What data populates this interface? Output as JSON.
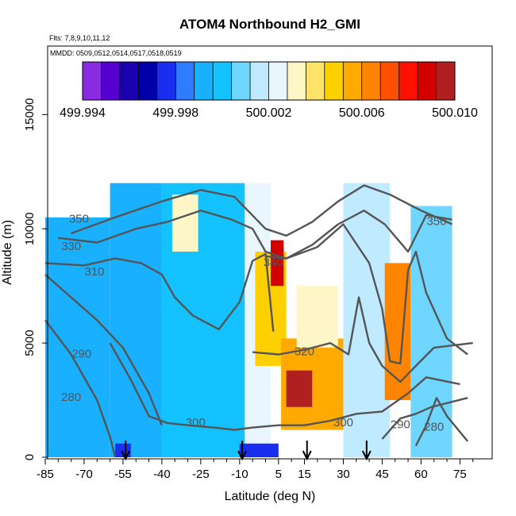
{
  "chart_data": {
    "type": "heatmap",
    "title": "ATOM4 Northbound H2_GMI",
    "flights_label": "Flts: 7,8,9,10,11,12",
    "dates_label": "MMDD: 0509,0512,0514,0517,0518,0519",
    "xlabel": "Latitude (deg N)",
    "ylabel": "Altitude (m)",
    "xlim": [
      -85,
      85
    ],
    "ylim": [
      0,
      18000
    ],
    "x_ticks": [
      -85,
      -70,
      -55,
      -40,
      -25,
      -10,
      5,
      15,
      30,
      45,
      60,
      75
    ],
    "x_tick_labels": [
      "-85",
      "-70",
      "-55",
      "-40",
      "-25",
      "-10",
      "5",
      "15",
      "30",
      "45",
      "60",
      "75"
    ],
    "y_ticks": [
      0,
      5000,
      10000,
      15000
    ],
    "y_tick_labels": [
      "0",
      "5000",
      "10000",
      "15000"
    ],
    "colorbar": {
      "range": [
        499.994,
        500.01
      ],
      "tick_values": [
        499.994,
        499.998,
        500.002,
        500.006,
        500.01
      ],
      "tick_labels": [
        "499.994",
        "499.998",
        "500.002",
        "500.006",
        "500.010"
      ],
      "colors": [
        "#8a2be2",
        "#5500d0",
        "#1a00b0",
        "#0000a8",
        "#1a2ef0",
        "#2f7cff",
        "#19b0ff",
        "#13c2ff",
        "#6fd6ff",
        "#bfeaff",
        "#eaf6ff",
        "#fff6c8",
        "#ffe36a",
        "#ffd000",
        "#ffaa00",
        "#ff8400",
        "#ff5000",
        "#ff1000",
        "#d30000",
        "#b02020"
      ]
    },
    "field_regions": [
      {
        "lat": [
          -85,
          -60
        ],
        "alt": [
          0,
          10500
        ],
        "value": 499.9996
      },
      {
        "lat": [
          -60,
          -40
        ],
        "alt": [
          0,
          12000
        ],
        "value": 499.9996
      },
      {
        "lat": [
          -40,
          -8
        ],
        "alt": [
          0,
          12000
        ],
        "value": 500.0
      },
      {
        "lat": [
          -36,
          -26
        ],
        "alt": [
          9000,
          11500
        ],
        "value": 500.0035
      },
      {
        "lat": [
          -8,
          2
        ],
        "alt": [
          0,
          12000
        ],
        "value": 500.002
      },
      {
        "lat": [
          -4,
          8
        ],
        "alt": [
          4000,
          9000
        ],
        "value": 500.005
      },
      {
        "lat": [
          2,
          7
        ],
        "alt": [
          7500,
          9500
        ],
        "value": 500.009
      },
      {
        "lat": [
          6,
          32
        ],
        "alt": [
          1200,
          5200
        ],
        "value": 500.006
      },
      {
        "lat": [
          8,
          18
        ],
        "alt": [
          2200,
          3800
        ],
        "value": 500.0095
      },
      {
        "lat": [
          12,
          28
        ],
        "alt": [
          4800,
          7500
        ],
        "value": 500.0035
      },
      {
        "lat": [
          30,
          48
        ],
        "alt": [
          0,
          12000
        ],
        "value": 500.0015
      },
      {
        "lat": [
          46,
          56
        ],
        "alt": [
          2500,
          8500
        ],
        "value": 500.0065
      },
      {
        "lat": [
          56,
          72
        ],
        "alt": [
          0,
          11000
        ],
        "value": 500.0005
      },
      {
        "lat": [
          -58,
          -52
        ],
        "alt": [
          0,
          600
        ],
        "value": 499.998
      },
      {
        "lat": [
          -10,
          5
        ],
        "alt": [
          0,
          600
        ],
        "value": 499.9975
      }
    ],
    "contours": [
      {
        "label": "350",
        "points": [
          [
            -75,
            9800
          ],
          [
            -58,
            10500
          ],
          [
            -40,
            11200
          ],
          [
            -25,
            11700
          ],
          [
            -12,
            11400
          ],
          [
            0,
            10000
          ],
          [
            8,
            9700
          ],
          [
            18,
            10300
          ],
          [
            28,
            11200
          ],
          [
            38,
            11900
          ],
          [
            48,
            11500
          ],
          [
            60,
            10800
          ],
          [
            72,
            10200
          ]
        ]
      },
      {
        "label": "330",
        "points": [
          [
            -80,
            9600
          ],
          [
            -65,
            9400
          ],
          [
            -50,
            10000
          ],
          [
            -38,
            10300
          ],
          [
            -25,
            10800
          ],
          [
            -13,
            10400
          ],
          [
            -5,
            10000
          ],
          [
            0,
            9000
          ],
          [
            8,
            8700
          ],
          [
            18,
            9300
          ],
          [
            28,
            10200
          ],
          [
            38,
            10800
          ],
          [
            46,
            10200
          ],
          [
            55,
            9000
          ],
          [
            62,
            10600
          ],
          [
            72,
            10400
          ]
        ]
      },
      {
        "label": "310",
        "points": [
          [
            -85,
            8500
          ],
          [
            -70,
            8400
          ],
          [
            -58,
            8700
          ],
          [
            -48,
            8500
          ],
          [
            -40,
            8000
          ],
          [
            -35,
            7000
          ],
          [
            -28,
            6200
          ],
          [
            -18,
            5600
          ],
          [
            -10,
            6800
          ],
          [
            -5,
            8600
          ],
          [
            0,
            8900
          ],
          [
            3,
            5500
          ]
        ]
      },
      {
        "label": "340",
        "points": [
          [
            0,
            8800
          ],
          [
            8,
            8700
          ],
          [
            20,
            9200
          ],
          [
            30,
            10200
          ],
          [
            40,
            8500
          ],
          [
            45,
            6500
          ],
          [
            48,
            4200
          ],
          [
            52,
            4100
          ],
          [
            55,
            8200
          ],
          [
            58,
            9000
          ],
          [
            62,
            7200
          ],
          [
            70,
            5200
          ],
          [
            78,
            4500
          ]
        ]
      },
      {
        "label": "320",
        "points": [
          [
            -5,
            4600
          ],
          [
            5,
            4500
          ],
          [
            15,
            4700
          ],
          [
            25,
            5000
          ],
          [
            32,
            4500
          ],
          [
            36,
            7000
          ],
          [
            40,
            5000
          ],
          [
            45,
            4000
          ],
          [
            52,
            3300
          ],
          [
            58,
            4000
          ],
          [
            65,
            4800
          ],
          [
            80,
            5000
          ]
        ]
      },
      {
        "label": "300",
        "points": [
          [
            -60,
            5000
          ],
          [
            -52,
            3400
          ],
          [
            -45,
            1800
          ],
          [
            -38,
            1500
          ],
          [
            -30,
            1400
          ],
          [
            -20,
            1300
          ],
          [
            -12,
            1200
          ],
          [
            -5,
            1300
          ],
          [
            5,
            1400
          ],
          [
            15,
            1400
          ],
          [
            25,
            1600
          ],
          [
            35,
            1900
          ],
          [
            45,
            2000
          ],
          [
            55,
            2800
          ],
          [
            62,
            3500
          ],
          [
            75,
            3200
          ]
        ]
      },
      {
        "label": "290",
        "points": [
          [
            -85,
            8000
          ],
          [
            -75,
            7000
          ],
          [
            -65,
            6000
          ],
          [
            -55,
            4800
          ],
          [
            -45,
            2800
          ],
          [
            -40,
            1400
          ]
        ]
      },
      {
        "label": "280",
        "points": [
          [
            -85,
            6000
          ],
          [
            -75,
            4500
          ],
          [
            -65,
            2500
          ],
          [
            -60,
            900
          ],
          [
            -58,
            0
          ]
        ]
      },
      {
        "label": "290",
        "points": [
          [
            45,
            800
          ],
          [
            52,
            1700
          ],
          [
            58,
            1900
          ],
          [
            64,
            2200
          ],
          [
            78,
            2600
          ]
        ]
      },
      {
        "label": "280",
        "points": [
          [
            58,
            500
          ],
          [
            62,
            1400
          ],
          [
            66,
            2600
          ],
          [
            70,
            1800
          ],
          [
            78,
            700
          ]
        ]
      }
    ],
    "contour_labels": [
      {
        "text": "350",
        "lat": -72,
        "alt": 10400
      },
      {
        "text": "330",
        "lat": -75,
        "alt": 9200
      },
      {
        "text": "310",
        "lat": -66,
        "alt": 8100
      },
      {
        "text": "340",
        "lat": 3,
        "alt": 8500
      },
      {
        "text": "320",
        "lat": 15,
        "alt": 4600
      },
      {
        "text": "300",
        "lat": -27,
        "alt": 1500
      },
      {
        "text": "300",
        "lat": 30,
        "alt": 1500
      },
      {
        "text": "290",
        "lat": -71,
        "alt": 4500
      },
      {
        "text": "280",
        "lat": -75,
        "alt": 2600
      },
      {
        "text": "290",
        "lat": 52,
        "alt": 1400
      },
      {
        "text": "280",
        "lat": 65,
        "alt": 1300
      },
      {
        "text": "350",
        "lat": 66,
        "alt": 10300
      }
    ],
    "flight_markers_lat": [
      -54,
      -9,
      16,
      39
    ]
  }
}
